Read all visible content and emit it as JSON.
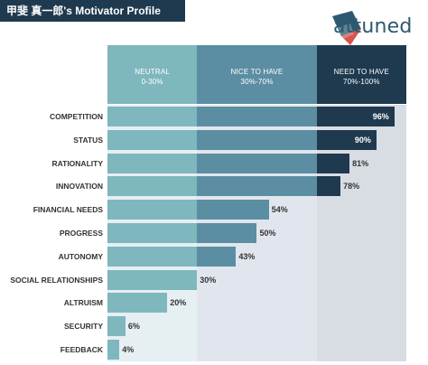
{
  "header": {
    "title": "甲斐 真一郎's Motivator Profile"
  },
  "logo": {
    "text": "attuned",
    "colors": {
      "mark_dark": "#2d5870",
      "mark_red": "#d9534f",
      "text": "#2d5870"
    }
  },
  "chart_data": {
    "type": "bar",
    "orientation": "horizontal",
    "categories": [
      "COMPETITION",
      "STATUS",
      "RATIONALITY",
      "INNOVATION",
      "FINANCIAL NEEDS",
      "PROGRESS",
      "AUTONOMY",
      "SOCIAL RELATIONSHIPS",
      "ALTRUISM",
      "SECURITY",
      "FEEDBACK"
    ],
    "values": [
      96,
      90,
      81,
      78,
      54,
      50,
      43,
      30,
      20,
      6,
      4
    ],
    "value_labels": [
      "96%",
      "90%",
      "81%",
      "78%",
      "54%",
      "50%",
      "43%",
      "30%",
      "20%",
      "6%",
      "4%"
    ],
    "xlim": [
      0,
      100
    ],
    "bands": [
      {
        "name": "NEUTRAL",
        "range_label": "0-30%",
        "from": 0,
        "to": 30,
        "header_color": "#7fb7bf",
        "bar_color": "#7fb7bf",
        "track_color": "#e6eff2"
      },
      {
        "name": "NICE TO HAVE",
        "range_label": "30%-70%",
        "from": 30,
        "to": 70,
        "header_color": "#5b8ea3",
        "bar_color": "#5b8ea3",
        "track_color": "#e1e6ee"
      },
      {
        "name": "NEED TO HAVE",
        "range_label": "70%-100%",
        "from": 70,
        "to": 100,
        "header_color": "#1f3a4f",
        "bar_color": "#1f3a4f",
        "track_color": "#d8dde4"
      }
    ],
    "title": "",
    "xlabel": "",
    "ylabel": ""
  }
}
